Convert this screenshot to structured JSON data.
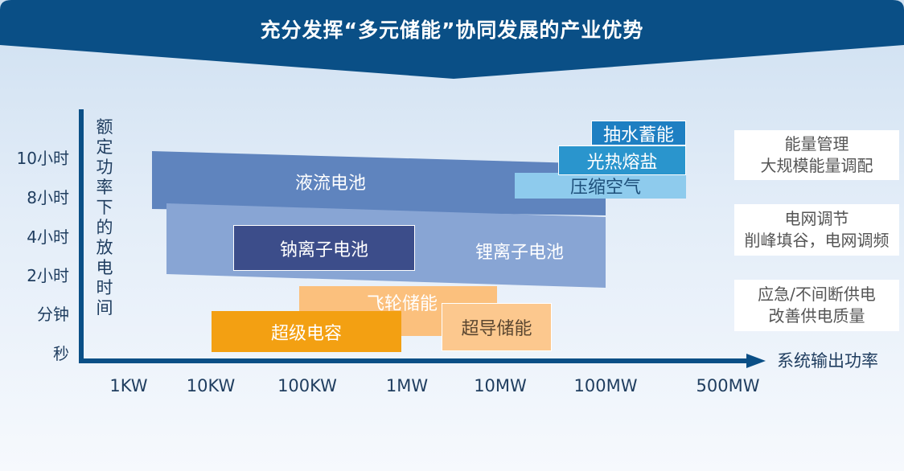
{
  "title": "充分发挥“多元储能”协同发展的产业优势",
  "axes": {
    "y_label": "额定功率下的放电时间",
    "x_label": "系统输出功率",
    "y_ticks": [
      "10小时",
      "8小时",
      "4小时",
      "2小时",
      "分钟",
      "秒"
    ],
    "x_ticks": [
      "1KW",
      "10KW",
      "100KW",
      "1MW",
      "10MW",
      "100MW",
      "500MW"
    ]
  },
  "technologies": {
    "liquid_flow": "液流电池",
    "lithium_ion": "锂离子电池",
    "sodium_ion": "钠离子电池",
    "pumped_hydro": "抽水蓄能",
    "molten_salt": "光热熔盐",
    "compressed_air": "压缩空气",
    "flywheel": "飞轮储能",
    "supercapacitor": "超级电容",
    "superconducting": "超导储能"
  },
  "applications": [
    {
      "line1": "能量管理",
      "line2": "大规模能量调配"
    },
    {
      "line1": "电网调节",
      "line2": "削峰填谷，电网调频"
    },
    {
      "line1": "应急/不间断供电",
      "line2": "改善供电质量"
    }
  ],
  "colors": {
    "banner": "#0a4f86",
    "axis": "#0a4f86",
    "liquid_flow": "#5f84be",
    "lithium_ion": "#88a5d4",
    "sodium_ion": "#3c4d8a",
    "pumped_hydro": "#1e7fc2",
    "molten_salt": "#2a95cd",
    "compressed_air": "#8ecbed",
    "flywheel": "#fbc07d",
    "supercapacitor": "#f3a012",
    "superconducting": "#fcc88e"
  }
}
